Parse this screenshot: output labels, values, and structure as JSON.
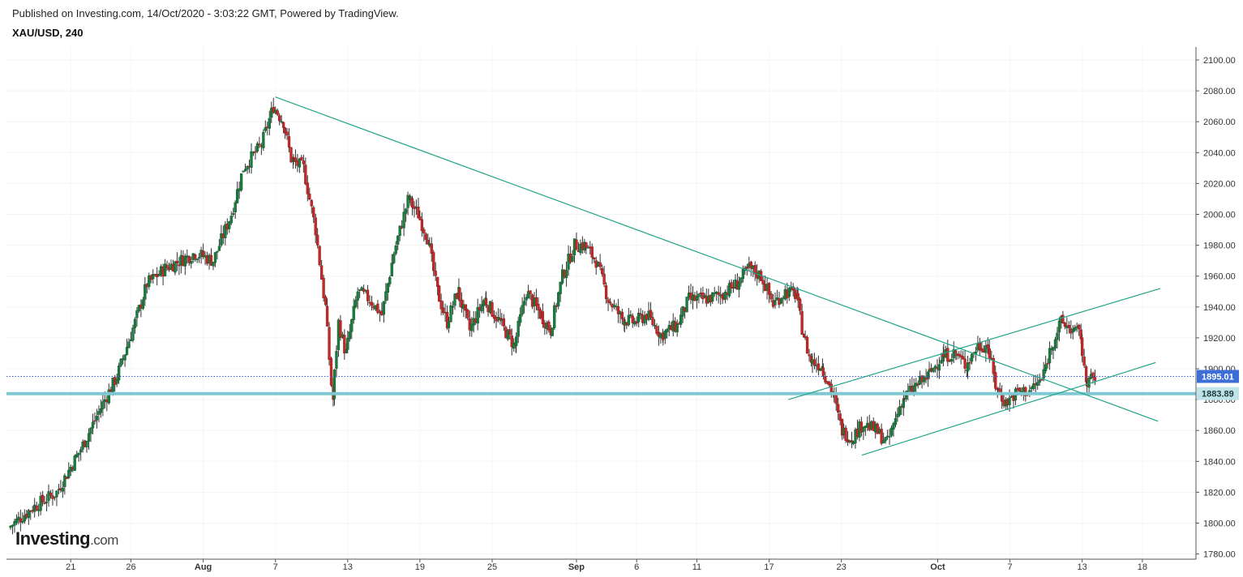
{
  "header": {
    "published": "Published on Investing.com, 14/Oct/2020 - 3:03:22 GMT, Powered by TradingView.",
    "symbol": "XAU/USD, 240"
  },
  "logo": {
    "brand": "Investing",
    "suffix": ".com"
  },
  "chart_data": {
    "type": "candlestick",
    "title": "",
    "xlabel": "",
    "ylabel": "",
    "ylim": [
      1776,
      2110
    ],
    "y_ticks": [
      "2100.00",
      "2080.00",
      "2060.00",
      "2040.00",
      "2020.00",
      "2000.00",
      "1980.00",
      "1960.00",
      "1940.00",
      "1920.00",
      "1900.00",
      "1880.00",
      "1860.00",
      "1840.00",
      "1820.00",
      "1800.00",
      "1780.00"
    ],
    "x_ticks": [
      {
        "label": "21",
        "day": 21,
        "bold": false
      },
      {
        "label": "26",
        "day": 26,
        "bold": false
      },
      {
        "label": "Aug",
        "day": 32,
        "bold": true
      },
      {
        "label": "7",
        "day": 38,
        "bold": false
      },
      {
        "label": "13",
        "day": 44,
        "bold": false
      },
      {
        "label": "19",
        "day": 50,
        "bold": false
      },
      {
        "label": "25",
        "day": 56,
        "bold": false
      },
      {
        "label": "Sep",
        "day": 63,
        "bold": true
      },
      {
        "label": "6",
        "day": 68,
        "bold": false
      },
      {
        "label": "11",
        "day": 73,
        "bold": false
      },
      {
        "label": "17",
        "day": 79,
        "bold": false
      },
      {
        "label": "23",
        "day": 85,
        "bold": false
      },
      {
        "label": "Oct",
        "day": 93,
        "bold": true
      },
      {
        "label": "7",
        "day": 99,
        "bold": false
      },
      {
        "label": "13",
        "day": 105,
        "bold": false
      },
      {
        "label": "18",
        "day": 110,
        "bold": false
      }
    ],
    "colors": {
      "up": "#26a69a",
      "down": "#c62828",
      "up_fill": "#1b7a3e",
      "trend": "#22a58a",
      "support": "#7fc8d1",
      "price_badge": "#3d6ed8"
    },
    "current_price": {
      "label": "1895.01",
      "value": 1895.01
    },
    "support_level": {
      "label": "1883.89",
      "value": 1883.89
    },
    "trendlines": [
      {
        "name": "descending-trendline",
        "from": {
          "day": 38.0,
          "price": 2076
        },
        "to": {
          "day": 111.3,
          "price": 1866
        }
      },
      {
        "name": "channel-upper",
        "from": {
          "day": 80.6,
          "price": 1880
        },
        "to": {
          "day": 111.5,
          "price": 1952
        }
      },
      {
        "name": "channel-lower",
        "from": {
          "day": 86.7,
          "price": 1844
        },
        "to": {
          "day": 111.1,
          "price": 1904
        }
      }
    ],
    "anchors": [
      [
        16.0,
        1797
      ],
      [
        18.0,
        1810
      ],
      [
        20.0,
        1820
      ],
      [
        22.0,
        1848
      ],
      [
        24.0,
        1880
      ],
      [
        25.0,
        1895
      ],
      [
        26.5,
        1930
      ],
      [
        27.5,
        1955
      ],
      [
        29.0,
        1965
      ],
      [
        31.5,
        1975
      ],
      [
        33.0,
        1970
      ],
      [
        34.5,
        2000
      ],
      [
        35.5,
        2030
      ],
      [
        37.0,
        2045
      ],
      [
        38.0,
        2070
      ],
      [
        38.8,
        2060
      ],
      [
        39.5,
        2035
      ],
      [
        40.5,
        2030
      ],
      [
        41.5,
        1990
      ],
      [
        42.3,
        1940
      ],
      [
        42.9,
        1880
      ],
      [
        43.4,
        1930
      ],
      [
        44.0,
        1910
      ],
      [
        45.0,
        1950
      ],
      [
        46.0,
        1945
      ],
      [
        47.0,
        1935
      ],
      [
        48.0,
        1975
      ],
      [
        49.2,
        2010
      ],
      [
        50.0,
        2000
      ],
      [
        50.8,
        1985
      ],
      [
        51.6,
        1950
      ],
      [
        52.4,
        1930
      ],
      [
        53.3,
        1950
      ],
      [
        54.3,
        1925
      ],
      [
        55.5,
        1945
      ],
      [
        56.8,
        1930
      ],
      [
        58.0,
        1915
      ],
      [
        59.0,
        1950
      ],
      [
        60.2,
        1935
      ],
      [
        61.0,
        1925
      ],
      [
        62.0,
        1960
      ],
      [
        63.0,
        1980
      ],
      [
        63.8,
        1980
      ],
      [
        64.8,
        1970
      ],
      [
        65.8,
        1945
      ],
      [
        67.0,
        1932
      ],
      [
        68.0,
        1930
      ],
      [
        69.0,
        1935
      ],
      [
        70.2,
        1922
      ],
      [
        71.5,
        1928
      ],
      [
        72.5,
        1945
      ],
      [
        73.8,
        1945
      ],
      [
        75.2,
        1948
      ],
      [
        76.5,
        1955
      ],
      [
        77.5,
        1965
      ],
      [
        78.5,
        1960
      ],
      [
        79.5,
        1942
      ],
      [
        80.5,
        1950
      ],
      [
        81.4,
        1948
      ],
      [
        82.0,
        1922
      ],
      [
        82.6,
        1905
      ],
      [
        83.5,
        1902
      ],
      [
        84.4,
        1885
      ],
      [
        85.2,
        1860
      ],
      [
        86.0,
        1855
      ],
      [
        87.0,
        1865
      ],
      [
        88.0,
        1860
      ],
      [
        89.0,
        1852
      ],
      [
        90.2,
        1880
      ],
      [
        91.2,
        1888
      ],
      [
        92.3,
        1895
      ],
      [
        93.5,
        1908
      ],
      [
        94.6,
        1910
      ],
      [
        95.5,
        1902
      ],
      [
        96.5,
        1915
      ],
      [
        97.3,
        1915
      ],
      [
        98.0,
        1888
      ],
      [
        98.8,
        1878
      ],
      [
        99.8,
        1885
      ],
      [
        100.8,
        1886
      ],
      [
        101.8,
        1893
      ],
      [
        102.6,
        1915
      ],
      [
        103.4,
        1930
      ],
      [
        104.4,
        1925
      ],
      [
        105.0,
        1922
      ],
      [
        105.4,
        1893
      ],
      [
        106.1,
        1893
      ]
    ]
  }
}
